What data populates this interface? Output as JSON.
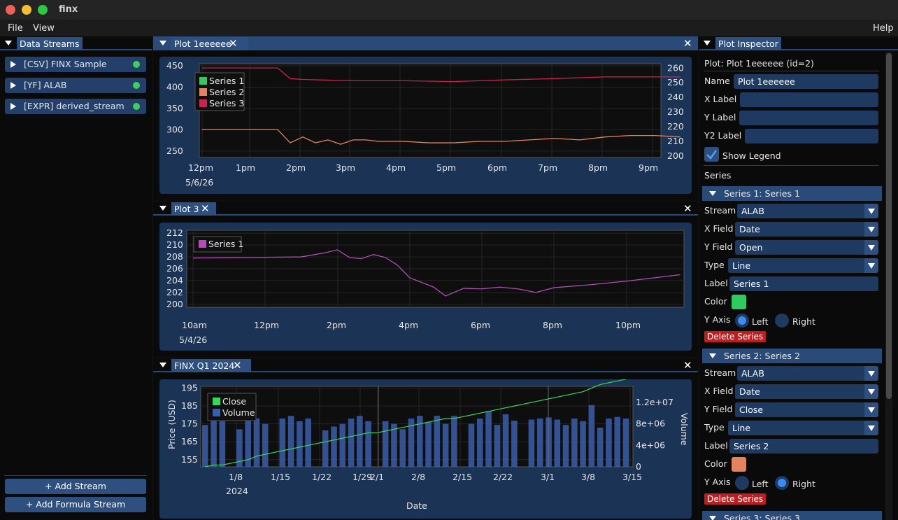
{
  "app": {
    "title": "finx"
  },
  "menu": {
    "file": "File",
    "view": "View",
    "help": "Help"
  },
  "streams_panel": {
    "tab": "Data Streams",
    "items": [
      {
        "label": "[CSV]  FINX Sample",
        "status": "connected"
      },
      {
        "label": "[YF]  ALAB",
        "status": "connected"
      },
      {
        "label": "[EXPR]  derived_stream",
        "status": "connected"
      }
    ],
    "add_stream": "+ Add Stream",
    "add_formula": "+ Add Formula Stream"
  },
  "plot1": {
    "tab": "Plot 1eeeeee",
    "legend": [
      "Series 1",
      "Series 2",
      "Series 3"
    ],
    "x_ticks": [
      "12pm",
      "1pm",
      "2pm",
      "3pm",
      "4pm",
      "5pm",
      "6pm",
      "7pm",
      "8pm",
      "9pm"
    ],
    "date_label": "5/6/26",
    "y_left_ticks": [
      "450",
      "400",
      "350",
      "300",
      "250"
    ],
    "y_right_ticks": [
      "260",
      "250",
      "240",
      "230",
      "220",
      "210",
      "200"
    ]
  },
  "plot3": {
    "tab": "Plot 3",
    "legend": [
      "Series 1"
    ],
    "x_ticks": [
      "10am",
      "12pm",
      "2pm",
      "4pm",
      "6pm",
      "8pm",
      "10pm"
    ],
    "date_label": "5/4/26",
    "y_ticks": [
      "212",
      "210",
      "208",
      "206",
      "204",
      "202",
      "200"
    ]
  },
  "finx": {
    "tab": "FINX Q1 2024",
    "legend": [
      "Close",
      "Volume"
    ],
    "x_ticks": [
      "1/8",
      "1/15",
      "1/22",
      "1/29",
      "2/1",
      "2/8",
      "2/15",
      "2/22",
      "3/1",
      "3/8",
      "3/15"
    ],
    "year_label": "2024",
    "y_left_ticks": [
      "195",
      "185",
      "175",
      "165",
      "155"
    ],
    "y_right_ticks": [
      "1.2e+07",
      "8e+06",
      "4e+06",
      "0"
    ],
    "xlabel": "Date",
    "ylabel": "Price (USD)",
    "y2label": "Volume"
  },
  "inspector": {
    "tab": "Plot Inspector",
    "plot_line": "Plot: Plot 1eeeeee (id=2)",
    "name_label": "Name",
    "name_value": "Plot 1eeeeee",
    "xlabel_label": "X Label",
    "ylabel_label": "Y Label",
    "y2label_label": "Y2 Label",
    "show_legend": "Show Legend",
    "series_heading": "Series",
    "series": [
      {
        "header": "Series 1: Series 1",
        "stream": "ALAB",
        "x_field": "Date",
        "y_field": "Open",
        "type": "Line",
        "label": "Series 1",
        "color": "#2ecc5e",
        "axis": "Left"
      },
      {
        "header": "Series 2: Series 2",
        "stream": "ALAB",
        "x_field": "Date",
        "y_field": "Close",
        "type": "Line",
        "label": "Series 2",
        "color": "#e58360",
        "axis": "Right"
      }
    ],
    "series3_header": "Series 3: Series 3",
    "labels": {
      "stream": "Stream",
      "x_field": "X Field",
      "y_field": "Y Field",
      "type": "Type",
      "label": "Label",
      "color": "Color",
      "y_axis": "Y Axis",
      "left": "Left",
      "right": "Right",
      "delete": "Delete Series"
    }
  },
  "colors": {
    "series1": "#2ecc5e",
    "series2": "#e58360",
    "series3": "#d0204f",
    "plot3_series": "#b24cb6",
    "close": "#3bd45f",
    "volume": "#3b5ea8"
  },
  "chart_data": [
    {
      "type": "line",
      "title": "",
      "series": [
        {
          "name": "Series 1",
          "values": []
        },
        {
          "name": "Series 2",
          "x": [
            "12pm",
            "1pm",
            "1:30pm",
            "1:45pm",
            "2pm",
            "2:15pm",
            "2:30pm",
            "2:45pm",
            "3pm",
            "3:15pm",
            "3:30pm",
            "4pm",
            "4:30pm",
            "5pm",
            "5:30pm",
            "6pm",
            "6:30pm",
            "7pm",
            "7:30pm",
            "8pm",
            "8:30pm",
            "9pm",
            "9:30pm"
          ],
          "values": [
            218,
            218,
            218,
            209,
            213,
            209,
            211,
            208,
            211,
            211,
            210,
            210,
            209,
            209,
            210,
            210,
            211,
            212,
            211,
            213,
            214,
            214,
            213
          ]
        },
        {
          "name": "Series 3",
          "x": [
            "12pm",
            "1pm",
            "1:30pm",
            "1:45pm",
            "2pm",
            "3pm",
            "4pm",
            "5pm",
            "6pm",
            "7pm",
            "8pm",
            "9pm",
            "9:30pm"
          ],
          "values": [
            445,
            445,
            445,
            420,
            418,
            415,
            415,
            413,
            417,
            420,
            424,
            424,
            424
          ]
        }
      ],
      "ylim_left": [
        235,
        455
      ],
      "ylim_right": [
        199,
        263
      ]
    },
    {
      "type": "line",
      "series": [
        {
          "name": "Series 1",
          "x": [
            "10am",
            "1pm",
            "1:40pm",
            "2pm",
            "2:20pm",
            "2:40pm",
            "3pm",
            "3:20pm",
            "3:40pm",
            "4pm",
            "4:40pm",
            "5pm",
            "5:30pm",
            "6pm",
            "6:30pm",
            "7pm",
            "7:30pm",
            "8pm",
            "9pm",
            "10pm",
            "11:30pm"
          ],
          "values": [
            207.8,
            208.0,
            208.7,
            209.2,
            207.9,
            207.7,
            208.4,
            207.9,
            206.6,
            204.5,
            202.9,
            201.4,
            202.7,
            202.6,
            202.9,
            202.6,
            202.0,
            202.8,
            203.3,
            203.9,
            205.0
          ]
        }
      ],
      "ylim": [
        199.5,
        212.5
      ]
    },
    {
      "type": "bar",
      "xlabel": "Date",
      "ylabel": "Price (USD)",
      "y2label": "Volume",
      "series": [
        {
          "name": "Close",
          "values": [
            151,
            152,
            152,
            153,
            154,
            155,
            157,
            158,
            159,
            160,
            161,
            162,
            163,
            164,
            165,
            166,
            167,
            168,
            169,
            170,
            170,
            171,
            172,
            173,
            174,
            175,
            176,
            177,
            178,
            178,
            179,
            180,
            181,
            182,
            183,
            184,
            185,
            186,
            187,
            188,
            189,
            190,
            191,
            192,
            193,
            195,
            197,
            198,
            199,
            200
          ]
        },
        {
          "name": "Volume",
          "values": [
            7.8,
            9.5,
            8.5,
            0,
            7,
            9,
            9,
            8,
            0,
            9,
            9.5,
            8.5,
            9,
            0,
            6.8,
            7.5,
            8,
            9,
            9.5,
            8.5,
            0,
            8.5,
            8,
            7,
            9,
            9.5,
            8.3,
            9.5,
            8,
            9.5,
            0,
            8,
            9,
            10.4,
            7.8,
            9.8,
            8.6,
            0,
            8.8,
            9,
            9.2,
            8.8,
            7.8,
            9,
            8.5,
            11.5,
            7.3,
            9,
            9.3,
            9
          ]
        }
      ],
      "ylim": [
        151,
        196
      ],
      "y2lim": [
        0,
        15000000
      ]
    }
  ]
}
